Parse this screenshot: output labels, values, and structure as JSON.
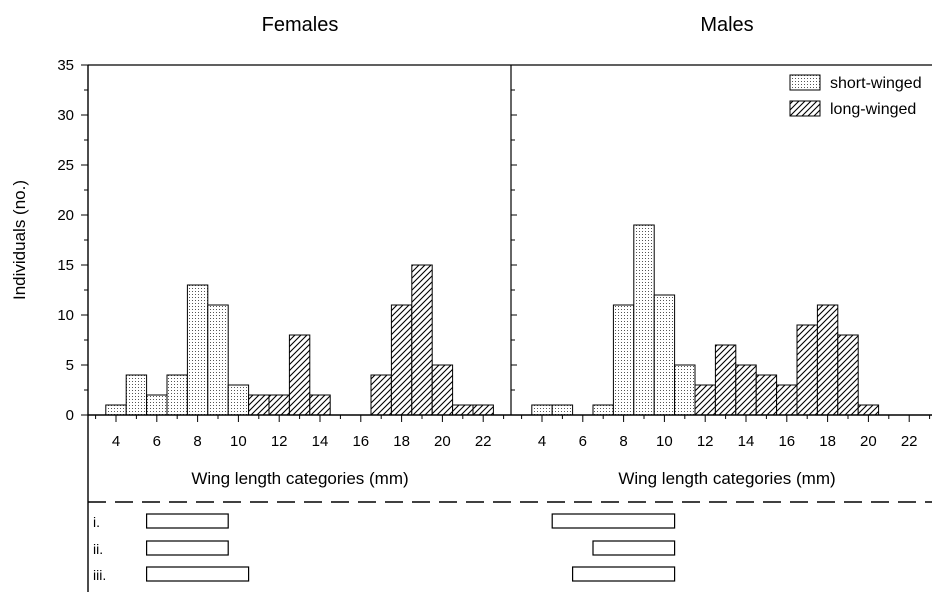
{
  "chart_data": {
    "type": "bar",
    "ylabel": "Individuals (no.)",
    "ylim": [
      0,
      35
    ],
    "yticks": [
      0,
      5,
      10,
      15,
      20,
      25,
      30,
      35
    ],
    "xticks": [
      4,
      6,
      8,
      10,
      12,
      14,
      16,
      18,
      20,
      22
    ],
    "xlabel": "Wing length categories (mm)",
    "legend": {
      "placement": "top-right",
      "items": [
        {
          "key": "short",
          "label": "short-winged",
          "pattern": "dotted"
        },
        {
          "key": "long",
          "label": "long-winged",
          "pattern": "hatched"
        }
      ]
    },
    "panels": [
      {
        "title": "Females",
        "bars": [
          {
            "x": 4,
            "y": 1,
            "form": "short"
          },
          {
            "x": 5,
            "y": 4,
            "form": "short"
          },
          {
            "x": 6,
            "y": 2,
            "form": "short"
          },
          {
            "x": 7,
            "y": 4,
            "form": "short"
          },
          {
            "x": 8,
            "y": 13,
            "form": "short"
          },
          {
            "x": 9,
            "y": 11,
            "form": "short"
          },
          {
            "x": 10,
            "y": 3,
            "form": "short"
          },
          {
            "x": 11,
            "y": 2,
            "form": "long"
          },
          {
            "x": 12,
            "y": 2,
            "form": "long"
          },
          {
            "x": 13,
            "y": 8,
            "form": "long"
          },
          {
            "x": 14,
            "y": 2,
            "form": "long"
          },
          {
            "x": 17,
            "y": 4,
            "form": "long"
          },
          {
            "x": 18,
            "y": 11,
            "form": "long"
          },
          {
            "x": 19,
            "y": 15,
            "form": "long"
          },
          {
            "x": 20,
            "y": 5,
            "form": "long"
          },
          {
            "x": 21,
            "y": 1,
            "form": "long"
          },
          {
            "x": 22,
            "y": 1,
            "form": "long"
          }
        ],
        "ranges": [
          {
            "label": "i.",
            "from": 5.5,
            "to": 9.5
          },
          {
            "label": "ii.",
            "from": 5.5,
            "to": 9.5
          },
          {
            "label": "iii.",
            "from": 5.5,
            "to": 10.5
          }
        ]
      },
      {
        "title": "Males",
        "bars": [
          {
            "x": 4,
            "y": 1,
            "form": "short"
          },
          {
            "x": 5,
            "y": 1,
            "form": "short"
          },
          {
            "x": 7,
            "y": 1,
            "form": "short"
          },
          {
            "x": 8,
            "y": 11,
            "form": "short"
          },
          {
            "x": 9,
            "y": 19,
            "form": "short"
          },
          {
            "x": 10,
            "y": 12,
            "form": "short"
          },
          {
            "x": 11,
            "y": 5,
            "form": "short"
          },
          {
            "x": 12,
            "y": 3,
            "form": "long"
          },
          {
            "x": 13,
            "y": 7,
            "form": "long"
          },
          {
            "x": 14,
            "y": 5,
            "form": "long"
          },
          {
            "x": 15,
            "y": 4,
            "form": "long"
          },
          {
            "x": 16,
            "y": 3,
            "form": "long"
          },
          {
            "x": 17,
            "y": 9,
            "form": "long"
          },
          {
            "x": 18,
            "y": 11,
            "form": "long"
          },
          {
            "x": 19,
            "y": 8,
            "form": "long"
          },
          {
            "x": 20,
            "y": 1,
            "form": "long"
          }
        ],
        "ranges": [
          {
            "label": "",
            "from": 4.5,
            "to": 10.5
          },
          {
            "label": "",
            "from": 6.5,
            "to": 10.5
          },
          {
            "label": "",
            "from": 5.5,
            "to": 10.5
          }
        ]
      }
    ]
  }
}
